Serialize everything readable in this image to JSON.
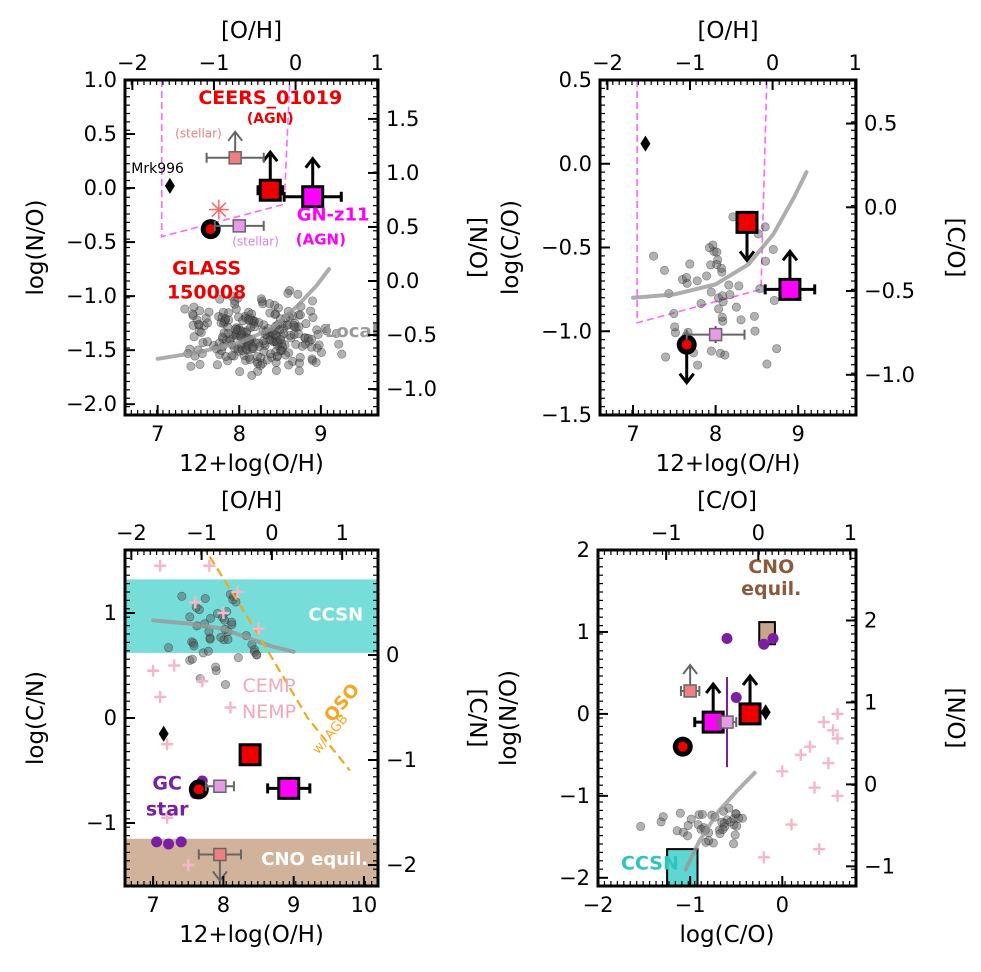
{
  "chart_data": [
    {
      "id": "p1",
      "type": "scatter",
      "xlabel": "12+log(O/H)",
      "ylabel": "log(N/O)",
      "top_label": "[O/H]",
      "right_label": "[N/O]",
      "xlim": [
        6.6,
        9.7
      ],
      "ylim": [
        -2.1,
        1.0
      ],
      "xticks": [
        {
          "v": 7,
          "t": "7"
        },
        {
          "v": 8,
          "t": "8"
        },
        {
          "v": 9,
          "t": "9"
        }
      ],
      "yticks": [
        {
          "v": 1.0,
          "t": "1.0"
        },
        {
          "v": 0.5,
          "t": "0.5"
        },
        {
          "v": 0.0,
          "t": "0.0"
        },
        {
          "v": -0.5,
          "t": "−0.5"
        },
        {
          "v": -1.0,
          "t": "−1.0"
        },
        {
          "v": -1.5,
          "t": "−1.5"
        },
        {
          "v": -2.0,
          "t": "−2.0"
        }
      ],
      "top_offset": 8.69,
      "topticks": [
        {
          "v": -2,
          "t": "−2"
        },
        {
          "v": -1,
          "t": "−1"
        },
        {
          "v": 0,
          "t": "0"
        },
        {
          "v": 1,
          "t": "1"
        }
      ],
      "right_offset": -0.86,
      "rightticks": [
        {
          "v": 1.5,
          "t": "1.5"
        },
        {
          "v": 1.0,
          "t": "1.0"
        },
        {
          "v": 0.5,
          "t": "0.5"
        },
        {
          "v": 0.0,
          "t": "0.0"
        },
        {
          "v": -0.5,
          "t": "−0.5"
        },
        {
          "v": -1.0,
          "t": "−1.0"
        }
      ],
      "local_curve": [
        [
          7.0,
          -1.58
        ],
        [
          7.5,
          -1.52
        ],
        [
          8.0,
          -1.43
        ],
        [
          8.4,
          -1.3
        ],
        [
          8.7,
          -1.1
        ],
        [
          8.95,
          -0.9
        ],
        [
          9.1,
          -0.75
        ]
      ],
      "local_label": {
        "x": 9.05,
        "y": -1.38,
        "text": "Local"
      },
      "cloud": {
        "center": [
          8.3,
          -1.35
        ],
        "spread": [
          0.5,
          0.2
        ],
        "n": 240
      },
      "dashed_box": [
        [
          7.05,
          1.0
        ],
        [
          7.05,
          -0.45
        ],
        [
          8.55,
          -0.15
        ],
        [
          8.62,
          1.0
        ]
      ],
      "points": [
        {
          "name": "glass",
          "x": 7.65,
          "y": -0.38,
          "kind": "glass",
          "xerr": 0,
          "yerr": 0
        },
        {
          "name": "ceers",
          "x": 8.38,
          "y": -0.02,
          "kind": "ceers",
          "xerr": 0.15,
          "yerr": 0.08,
          "up": true
        },
        {
          "name": "gnz11",
          "x": 8.9,
          "y": -0.08,
          "kind": "gnz",
          "xerr": 0.35,
          "yerr": 0.08,
          "up": true
        },
        {
          "name": "ceers-stellar",
          "x": 7.95,
          "y": 0.28,
          "kind": "stellar-red",
          "xerr": 0.35,
          "yerr": 0,
          "up": true
        },
        {
          "name": "gnz11-stellar",
          "x": 8.0,
          "y": -0.35,
          "kind": "stellar-pink",
          "xerr": 0.3,
          "yerr": 0.05,
          "up": false
        },
        {
          "name": "mrk996",
          "x": 7.15,
          "y": 0.02,
          "kind": "diamond"
        },
        {
          "name": "star",
          "x": 7.75,
          "y": -0.2,
          "kind": "starburst"
        }
      ],
      "texts": [
        {
          "x": 8.38,
          "y": 0.78,
          "text": "CEERS_01019",
          "color": "#ee0000",
          "size": 19,
          "bold": true
        },
        {
          "x": 8.38,
          "y": 0.6,
          "text": "(AGN)",
          "color": "#ee0000",
          "size": 14,
          "bold": true
        },
        {
          "x": 7.5,
          "y": 0.47,
          "text": "(stellar)",
          "color": "#ee8080",
          "size": 12,
          "bold": false
        },
        {
          "x": 7.0,
          "y": 0.14,
          "text": "Mrk996",
          "color": "#000000",
          "size": 14,
          "bold": false
        },
        {
          "x": 9.15,
          "y": -0.3,
          "text": "GN-z11",
          "color": "#ff00ff",
          "size": 18,
          "bold": true
        },
        {
          "x": 9.0,
          "y": -0.52,
          "text": "(AGN)",
          "color": "#ff00ff",
          "size": 15,
          "bold": true
        },
        {
          "x": 8.2,
          "y": -0.53,
          "text": "(stellar)",
          "color": "#e080e0",
          "size": 12,
          "bold": false
        },
        {
          "x": 7.6,
          "y": -0.8,
          "text": "GLASS",
          "color": "#ee0000",
          "size": 19,
          "bold": true
        },
        {
          "x": 7.6,
          "y": -1.02,
          "text": "150008",
          "color": "#ee0000",
          "size": 19,
          "bold": true
        }
      ]
    },
    {
      "id": "p2",
      "type": "scatter",
      "xlabel": "12+log(O/H)",
      "ylabel": "log(C/O)",
      "top_label": "[O/H]",
      "right_label": "[C/O]",
      "xlim": [
        6.6,
        9.7
      ],
      "ylim": [
        -1.5,
        0.5
      ],
      "xticks": [
        {
          "v": 7,
          "t": "7"
        },
        {
          "v": 8,
          "t": "8"
        },
        {
          "v": 9,
          "t": "9"
        }
      ],
      "yticks": [
        {
          "v": 0.5,
          "t": "0.5"
        },
        {
          "v": 0.0,
          "t": "0.0"
        },
        {
          "v": -0.5,
          "t": "−0.5"
        },
        {
          "v": -1.0,
          "t": "−1.0"
        },
        {
          "v": -1.5,
          "t": "−1.5"
        }
      ],
      "top_offset": 8.69,
      "topticks": [
        {
          "v": -2,
          "t": "−2"
        },
        {
          "v": -1,
          "t": "−1"
        },
        {
          "v": 0,
          "t": "0"
        },
        {
          "v": 1,
          "t": "1"
        }
      ],
      "right_offset": -0.26,
      "rightticks": [
        {
          "v": 0.5,
          "t": "0.5"
        },
        {
          "v": 0.0,
          "t": "0.0"
        },
        {
          "v": -0.5,
          "t": "−0.5"
        },
        {
          "v": -1.0,
          "t": "−1.0"
        }
      ],
      "local_curve": [
        [
          7.0,
          -0.8
        ],
        [
          7.5,
          -0.78
        ],
        [
          8.0,
          -0.72
        ],
        [
          8.4,
          -0.6
        ],
        [
          8.7,
          -0.42
        ],
        [
          8.95,
          -0.2
        ],
        [
          9.1,
          -0.05
        ]
      ],
      "cloud": {
        "center": [
          8.0,
          -0.75
        ],
        "spread": [
          0.45,
          0.3
        ],
        "n": 55
      },
      "dashed_box": [
        [
          7.05,
          0.5
        ],
        [
          7.05,
          -0.95
        ],
        [
          8.55,
          -0.75
        ],
        [
          8.62,
          0.5
        ]
      ],
      "points": [
        {
          "name": "glass",
          "x": 7.65,
          "y": -1.08,
          "kind": "glass",
          "xerr": 0,
          "yerr": 0,
          "down": true
        },
        {
          "name": "ceers",
          "x": 8.38,
          "y": -0.35,
          "kind": "ceers",
          "xerr": 0.1,
          "yerr": 0.05,
          "down": true
        },
        {
          "name": "gnz11",
          "x": 8.9,
          "y": -0.75,
          "kind": "gnz",
          "xerr": 0.3,
          "yerr": 0.03,
          "up": true
        },
        {
          "name": "gnz11-stellar",
          "x": 8.0,
          "y": -1.02,
          "kind": "stellar-pink",
          "xerr": 0.35,
          "yerr": 0.05
        },
        {
          "name": "mrk996",
          "x": 7.15,
          "y": 0.12,
          "kind": "diamond"
        }
      ],
      "texts": []
    },
    {
      "id": "p3",
      "type": "scatter",
      "xlabel": "12+log(O/H)",
      "ylabel": "log(C/N)",
      "top_label": "[O/H]",
      "right_label": "[C/N]",
      "xlim": [
        6.6,
        10.2
      ],
      "ylim": [
        -1.6,
        1.6
      ],
      "xticks": [
        {
          "v": 7,
          "t": "7"
        },
        {
          "v": 8,
          "t": "8"
        },
        {
          "v": 9,
          "t": "9"
        },
        {
          "v": 10,
          "t": "10"
        }
      ],
      "yticks": [
        {
          "v": 1,
          "t": "1"
        },
        {
          "v": 0,
          "t": "0"
        },
        {
          "v": -1,
          "t": "−1"
        }
      ],
      "top_offset": 8.69,
      "topticks": [
        {
          "v": -2,
          "t": "−2"
        },
        {
          "v": -1,
          "t": "−1"
        },
        {
          "v": 0,
          "t": "0"
        },
        {
          "v": 1,
          "t": "1"
        }
      ],
      "right_offset": 0.6,
      "rightticks": [
        {
          "v": 0,
          "t": "0"
        },
        {
          "v": -1,
          "t": "−1"
        },
        {
          "v": -2,
          "t": "−2"
        }
      ],
      "bands": [
        {
          "name": "ccsn",
          "y0": 0.62,
          "y1": 1.32,
          "color": "#5ed7d2",
          "label": "CCSN",
          "lx": 9.6,
          "ly": 0.93
        },
        {
          "name": "cno",
          "y0": -1.62,
          "y1": -1.15,
          "color": "#c9a68a",
          "label": "CNO equil.",
          "lx": 9.3,
          "ly": -1.4
        }
      ],
      "local_curve": [
        [
          7.0,
          0.93
        ],
        [
          7.5,
          0.9
        ],
        [
          8.0,
          0.85
        ],
        [
          8.4,
          0.75
        ],
        [
          8.7,
          0.68
        ],
        [
          9.0,
          0.63
        ]
      ],
      "qso_line": [
        [
          7.7,
          1.65
        ],
        [
          8.4,
          0.9
        ],
        [
          9.2,
          0.0
        ],
        [
          9.8,
          -0.5
        ]
      ],
      "cloud": {
        "center": [
          7.95,
          0.75
        ],
        "spread": [
          0.35,
          0.3
        ],
        "n": 45
      },
      "pinks": [
        [
          7.1,
          1.45
        ],
        [
          7.8,
          1.45
        ],
        [
          8.2,
          1.2
        ],
        [
          7.0,
          0.45
        ],
        [
          7.3,
          0.5
        ],
        [
          7.2,
          -0.25
        ],
        [
          7.1,
          0.2
        ],
        [
          8.1,
          0.1
        ],
        [
          7.7,
          0.35
        ],
        [
          8.0,
          1.0
        ],
        [
          7.6,
          1.1
        ],
        [
          8.5,
          0.85
        ],
        [
          7.5,
          -1.4
        ],
        [
          7.2,
          -0.95
        ]
      ],
      "purples": [
        [
          7.05,
          -1.18
        ],
        [
          7.22,
          -1.2
        ],
        [
          7.4,
          -1.18
        ],
        [
          7.6,
          -0.72
        ],
        [
          7.7,
          -0.6
        ]
      ],
      "points": [
        {
          "name": "glass",
          "x": 7.65,
          "y": -0.68,
          "kind": "glass",
          "xerr": 0,
          "yerr": 0.07
        },
        {
          "name": "ceers",
          "x": 8.38,
          "y": -0.35,
          "kind": "ceers",
          "xerr": 0.1,
          "yerr": 0.05
        },
        {
          "name": "gnz11",
          "x": 8.93,
          "y": -0.67,
          "kind": "gnz",
          "xerr": 0.3,
          "yerr": 0.06
        },
        {
          "name": "gnz11-stellar",
          "x": 7.95,
          "y": -0.65,
          "kind": "stellar-pink",
          "xerr": 0.2,
          "yerr": 0.05
        },
        {
          "name": "ceers-stellar",
          "x": 7.95,
          "y": -1.3,
          "kind": "stellar-red",
          "xerr": 0.3,
          "yerr": 0,
          "down": true
        },
        {
          "name": "mrk996",
          "x": 7.15,
          "y": -0.15,
          "kind": "diamond"
        }
      ],
      "texts": [
        {
          "x": 8.65,
          "y": 0.25,
          "text": "CEMP",
          "color": "#f4a7b9",
          "size": 19,
          "bold": false
        },
        {
          "x": 8.65,
          "y": 0.0,
          "text": "NEMP",
          "color": "#f4a7b9",
          "size": 19,
          "bold": false
        },
        {
          "x": 7.2,
          "y": -0.68,
          "text": "GC",
          "color": "#7b1fa2",
          "size": 19,
          "bold": true
        },
        {
          "x": 7.2,
          "y": -0.93,
          "text": "star",
          "color": "#7b1fa2",
          "size": 19,
          "bold": true
        }
      ]
    },
    {
      "id": "p4",
      "type": "scatter",
      "xlabel": "log(C/O)",
      "ylabel": "log(N/O)",
      "top_label": "[C/O]",
      "right_label": "[N/O]",
      "xlim": [
        -2.0,
        0.8
      ],
      "ylim": [
        -2.1,
        2.0
      ],
      "xticks": [
        {
          "v": -2,
          "t": "−2"
        },
        {
          "v": -1,
          "t": "−1"
        },
        {
          "v": 0,
          "t": "0"
        }
      ],
      "yticks": [
        {
          "v": 2,
          "t": "2"
        },
        {
          "v": 1,
          "t": "1"
        },
        {
          "v": 0,
          "t": "0"
        },
        {
          "v": -1,
          "t": "−1"
        },
        {
          "v": -2,
          "t": "−2"
        }
      ],
      "top_offset": -0.26,
      "topticks": [
        {
          "v": -1,
          "t": "−1"
        },
        {
          "v": 0,
          "t": "0"
        },
        {
          "v": 1,
          "t": "1"
        }
      ],
      "right_offset": -0.86,
      "rightticks": [
        {
          "v": 2,
          "t": "2"
        },
        {
          "v": 1,
          "t": "1"
        },
        {
          "v": 0,
          "t": "0"
        },
        {
          "v": -1,
          "t": "−1"
        }
      ],
      "local_curve": [
        [
          -1.05,
          -1.9
        ],
        [
          -0.9,
          -1.55
        ],
        [
          -0.7,
          -1.2
        ],
        [
          -0.5,
          -0.95
        ],
        [
          -0.3,
          -0.72
        ]
      ],
      "cloud": {
        "center": [
          -0.8,
          -1.35
        ],
        "spread": [
          0.35,
          0.15
        ],
        "n": 40
      },
      "rects": [
        {
          "name": "ccsn-box",
          "x0": -1.25,
          "x1": -0.92,
          "y0": -2.1,
          "y1": -1.65,
          "color": "#5ed7d2",
          "label": "CCSN",
          "lx": -1.75,
          "ly": -1.9,
          "lcolor": "#2ec4c0"
        },
        {
          "name": "cno-box",
          "x0": -0.25,
          "x1": -0.08,
          "y0": 0.85,
          "y1": 1.12,
          "color": "#c9a68a",
          "label": "",
          "lx": 0,
          "ly": 0,
          "lcolor": "#8b5a3c"
        }
      ],
      "pinks": [
        [
          0.45,
          -0.1
        ],
        [
          0.55,
          -0.2
        ],
        [
          0.6,
          -0.3
        ],
        [
          0.3,
          -0.4
        ],
        [
          0.2,
          -0.5
        ],
        [
          0.5,
          -0.6
        ],
        [
          0.0,
          -0.7
        ],
        [
          0.35,
          -0.9
        ],
        [
          0.6,
          -1.0
        ],
        [
          0.1,
          -1.35
        ],
        [
          0.4,
          -1.65
        ],
        [
          -0.2,
          -1.75
        ],
        [
          0.6,
          0.0
        ]
      ],
      "purples": [
        [
          -0.6,
          0.92
        ],
        [
          -0.2,
          0.85
        ],
        [
          -0.1,
          0.92
        ],
        [
          -0.5,
          0.2
        ]
      ],
      "points": [
        {
          "name": "glass",
          "x": -1.08,
          "y": -0.4,
          "kind": "glass",
          "xerr": 0,
          "yerr": 0
        },
        {
          "name": "ceers",
          "x": -0.35,
          "y": 0.0,
          "kind": "ceers",
          "xerr": 0.1,
          "yerr": 0.05,
          "up": true
        },
        {
          "name": "gnz11",
          "x": -0.75,
          "y": -0.1,
          "kind": "gnz",
          "xerr": 0.2,
          "yerr": 0.08,
          "up": true
        },
        {
          "name": "gnz11-stellar",
          "x": -0.6,
          "y": -0.1,
          "kind": "stellar-pink",
          "xerr": 0.1,
          "yerr": 0.55
        },
        {
          "name": "ceers-stellar",
          "x": -1.0,
          "y": 0.28,
          "kind": "stellar-red",
          "xerr": 0.1,
          "yerr": 0,
          "up": true
        },
        {
          "name": "mrk996",
          "x": -0.18,
          "y": 0.02,
          "kind": "diamond"
        }
      ],
      "texts": [
        {
          "x": -0.12,
          "y": 1.72,
          "text": "CNO",
          "color": "#8b5a3c",
          "size": 19,
          "bold": true
        },
        {
          "x": -0.12,
          "y": 1.45,
          "text": "equil.",
          "color": "#8b5a3c",
          "size": 19,
          "bold": true
        }
      ]
    }
  ],
  "labels": {
    "qso": "QSO",
    "qso_sub": "w/ AGB"
  }
}
